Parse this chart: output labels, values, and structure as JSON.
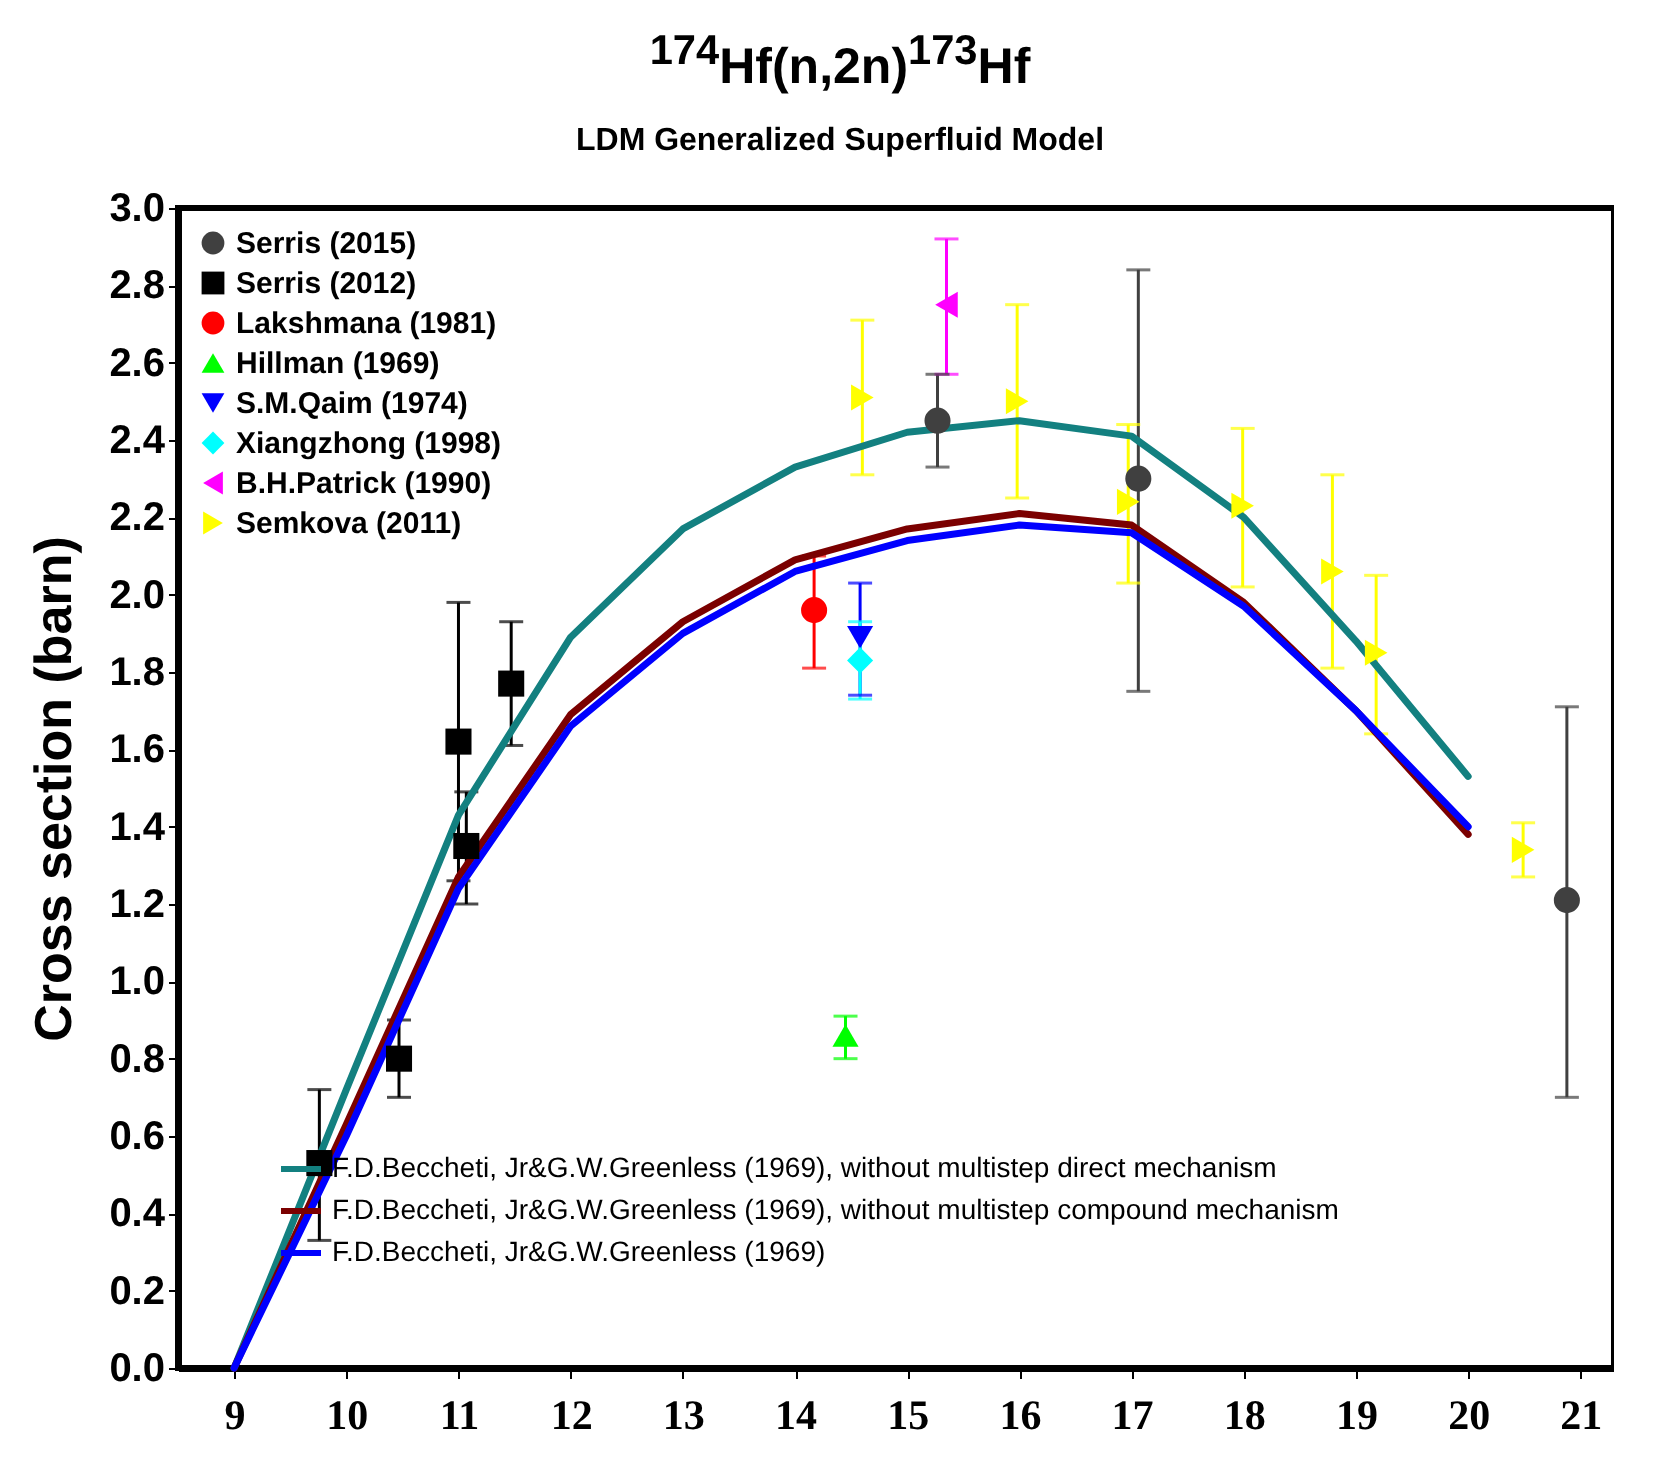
{
  "chart_data": {
    "type": "scatter",
    "title": "$^{174}$Hf(n,2n)$^{173}$Hf",
    "subtitle": "LDM Generalized Superfluid Model",
    "ylabel": "Cross section (barn)",
    "xlim": [
      8.5,
      21.3
    ],
    "xticks": [
      9,
      10,
      11,
      12,
      13,
      14,
      15,
      16,
      17,
      18,
      19,
      20,
      21
    ],
    "ylim": [
      0,
      3.0
    ],
    "yticks": [
      {
        "value": 0,
        "label": "0.0"
      },
      {
        "value": 0.2,
        "label": "0.2"
      },
      {
        "value": 0.4,
        "label": "0.4"
      },
      {
        "value": 0.6,
        "label": "0.6"
      },
      {
        "value": 0.8,
        "label": "0.8"
      },
      {
        "value": 1,
        "label": "1.0"
      },
      {
        "value": 1.2,
        "label": "1.2"
      },
      {
        "value": 1.4,
        "label": "1.4"
      },
      {
        "value": 1.6,
        "label": "1.6"
      },
      {
        "value": 1.8,
        "label": "1.8"
      },
      {
        "value": 2,
        "label": "2.0"
      },
      {
        "value": 2.2,
        "label": "2.2"
      },
      {
        "value": 2.4,
        "label": "2.4"
      },
      {
        "value": 2.6,
        "label": "2.6"
      },
      {
        "value": 2.8,
        "label": "2.8"
      },
      {
        "value": 3,
        "label": "3.0"
      }
    ],
    "grid": false,
    "legend": "top left",
    "series": [
      {
        "name": "Serris (2015)",
        "marker": "circle",
        "color": "#404040",
        "x": [
          15.27,
          17.06,
          20.88
        ],
        "values": [
          2.45,
          2.3,
          1.21
        ],
        "errors": [
          [
            2.33,
            2.57
          ],
          [
            1.75,
            2.84
          ],
          [
            0.7,
            1.71
          ]
        ]
      },
      {
        "name": "Serris (2012)",
        "marker": "square",
        "color": "#000000",
        "x": [
          9.76,
          10.47,
          11.0,
          11.07,
          11.47
        ],
        "values": [
          0.53,
          0.8,
          1.62,
          1.35,
          1.77
        ],
        "errors": [
          [
            0.33,
            0.72
          ],
          [
            0.7,
            0.9
          ],
          [
            1.26,
            1.98
          ],
          [
            1.2,
            1.49
          ],
          [
            1.61,
            1.93
          ]
        ]
      },
      {
        "name": "Lakshmana (1981)",
        "marker": "circle",
        "color": "#ff0000",
        "x": [
          14.17
        ],
        "values": [
          1.96
        ],
        "errors": [
          [
            1.81,
            2.1
          ]
        ]
      },
      {
        "name": "Hillman (1969)",
        "marker": "triangle",
        "color": "#00ff00",
        "x": [
          14.45
        ],
        "values": [
          0.86
        ],
        "errors": [
          [
            0.8,
            0.91
          ]
        ]
      },
      {
        "name": "S.M.Qaim (1974)",
        "marker": "triangle-down",
        "color": "#0000ff",
        "x": [
          14.58
        ],
        "values": [
          1.89
        ],
        "errors": [
          [
            1.74,
            2.03
          ]
        ]
      },
      {
        "name": "Xiangzhong (1998)",
        "marker": "diamond",
        "color": "#00ffff",
        "x": [
          14.58
        ],
        "values": [
          1.83
        ],
        "errors": [
          [
            1.73,
            1.93
          ]
        ]
      },
      {
        "name": "B.H.Patrick (1990)",
        "marker": "triangle-left",
        "color": "#ff00ff",
        "x": [
          15.35
        ],
        "values": [
          2.75
        ],
        "errors": [
          [
            2.57,
            2.92
          ]
        ]
      },
      {
        "name": "Semkova (2011)",
        "marker": "triangle-right",
        "color": "#ffff00",
        "x": [
          14.6,
          15.98,
          16.97,
          17.99,
          18.79,
          19.18,
          20.49
        ],
        "values": [
          2.51,
          2.5,
          2.24,
          2.23,
          2.06,
          1.85,
          1.34
        ],
        "errors": [
          [
            2.31,
            2.71
          ],
          [
            2.25,
            2.75
          ],
          [
            2.03,
            2.44
          ],
          [
            2.02,
            2.43
          ],
          [
            1.81,
            2.31
          ],
          [
            1.64,
            2.05
          ],
          [
            1.27,
            1.41
          ]
        ]
      },
      {
        "name": "F.D.Beccheti, Jr&G.W.Greenless (1969), without multistep direct mechanism",
        "type": "line",
        "color": "#138080",
        "x": [
          9,
          10,
          11,
          12,
          13,
          14,
          15,
          16,
          17,
          18,
          19,
          20
        ],
        "values": [
          0.0,
          0.72,
          1.43,
          1.89,
          2.17,
          2.33,
          2.42,
          2.45,
          2.41,
          2.2,
          1.88,
          1.53
        ]
      },
      {
        "name": "F.D.Beccheti, Jr&G.W.Greenless (1969), without multistep compound mechanism",
        "type": "line",
        "color": "#7b0000",
        "x": [
          9,
          10,
          11,
          12,
          13,
          14,
          15,
          16,
          17,
          18,
          19,
          20
        ],
        "values": [
          0.0,
          0.63,
          1.27,
          1.69,
          1.93,
          2.09,
          2.17,
          2.21,
          2.18,
          1.98,
          1.7,
          1.38
        ]
      },
      {
        "name": "F.D.Beccheti, Jr&G.W.Greenless (1969)",
        "type": "line",
        "color": "#0000ff",
        "x": [
          9,
          10,
          11,
          12,
          13,
          14,
          15,
          16,
          17,
          18,
          19,
          20
        ],
        "values": [
          0.0,
          0.6,
          1.24,
          1.66,
          1.9,
          2.06,
          2.14,
          2.18,
          2.16,
          1.97,
          1.7,
          1.4
        ]
      }
    ]
  }
}
